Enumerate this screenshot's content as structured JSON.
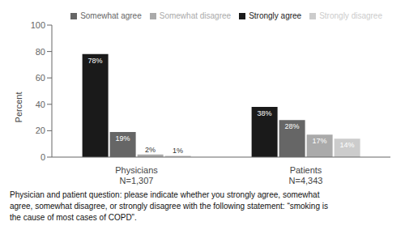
{
  "chart_data": {
    "type": "bar",
    "categories": [
      "Physicians\nN=1,307",
      "Patients\nN=4,343"
    ],
    "series": [
      {
        "name": "Strongly agree",
        "color": "#1a1a1a",
        "values": [
          78,
          38
        ],
        "value_labels": [
          "78%",
          "38%"
        ]
      },
      {
        "name": "Somewhat agree",
        "color": "#666666",
        "values": [
          19,
          28
        ],
        "value_labels": [
          "19%",
          "28%"
        ]
      },
      {
        "name": "Somewhat disagree",
        "color": "#aaaaaa",
        "values": [
          2,
          17
        ],
        "value_labels": [
          "2%",
          "17%"
        ]
      },
      {
        "name": "Strongly disagree",
        "color": "#cccccc",
        "values": [
          1,
          14
        ],
        "value_labels": [
          "1%",
          "14%"
        ]
      }
    ],
    "ylabel": "Percent",
    "ylim": [
      0,
      100
    ],
    "yticks": [
      0,
      20,
      40,
      60,
      80,
      100
    ],
    "grid": false,
    "legend": "upper right",
    "data_labels": true,
    "caption": "Physician and patient question: please indicate whether you strongly agree, somewhat\nagree, somewhat disagree, or strongly disagree with the following statement: “smoking is\nthe cause of most cases of COPD”."
  }
}
